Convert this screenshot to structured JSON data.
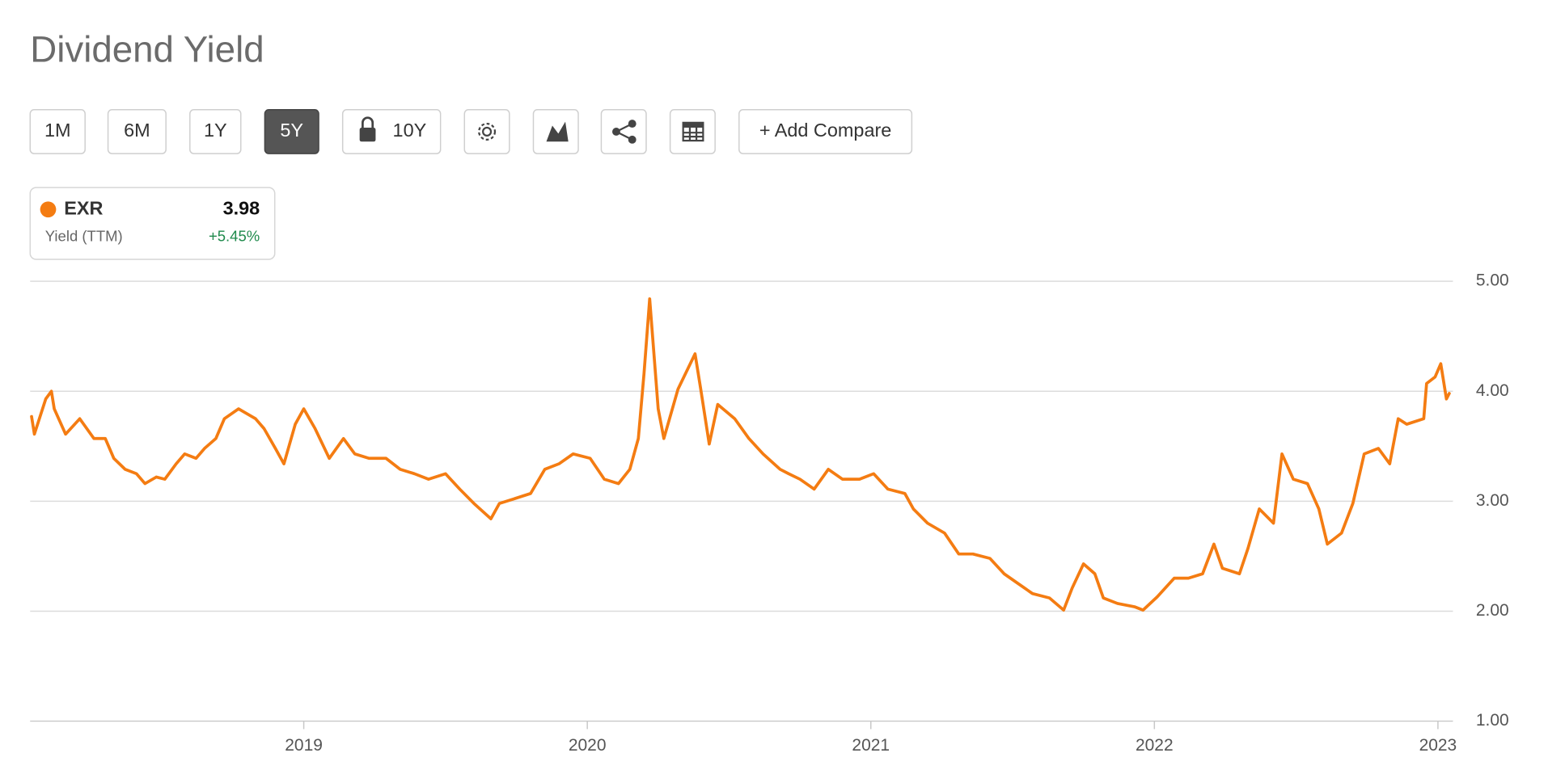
{
  "title": "Dividend Yield",
  "toolbar": {
    "ranges": [
      "1M",
      "6M",
      "1Y",
      "5Y",
      "10Y"
    ],
    "active": "5Y",
    "compare": "+ Add Compare"
  },
  "legend": {
    "value": 3.98,
    "label": "Yield (TTM)",
    "change": "+5.45%"
  },
  "chart_data": {
    "type": "line",
    "x": [
      2018.04,
      2018.05,
      2018.09,
      2018.11,
      2018.12,
      2018.16,
      2018.21,
      2018.26,
      2018.3,
      2018.33,
      2018.37,
      2018.41,
      2018.44,
      2018.48,
      2018.51,
      2018.55,
      2018.58,
      2018.62,
      2018.65,
      2018.69,
      2018.72,
      2018.77,
      2018.83,
      2018.86,
      2018.9,
      2018.93,
      2018.97,
      2019.0,
      2019.04,
      2019.09,
      2019.14,
      2019.18,
      2019.23,
      2019.29,
      2019.34,
      2019.39,
      2019.44,
      2019.5,
      2019.55,
      2019.6,
      2019.66,
      2019.69,
      2019.74,
      2019.8,
      2019.85,
      2019.9,
      2019.95,
      2020.01,
      2020.06,
      2020.11,
      2020.15,
      2020.18,
      2020.2,
      2020.22,
      2020.25,
      2020.27,
      2020.32,
      2020.38,
      2020.4,
      2020.43,
      2020.46,
      2020.52,
      2020.57,
      2020.62,
      2020.68,
      2020.71,
      2020.75,
      2020.8,
      2020.85,
      2020.9,
      2020.96,
      2021.01,
      2021.06,
      2021.12,
      2021.15,
      2021.2,
      2021.26,
      2021.31,
      2021.36,
      2021.42,
      2021.47,
      2021.52,
      2021.57,
      2021.63,
      2021.68,
      2021.71,
      2021.75,
      2021.79,
      2021.82,
      2021.87,
      2021.93,
      2021.96,
      2022.01,
      2022.07,
      2022.12,
      2022.17,
      2022.21,
      2022.24,
      2022.3,
      2022.33,
      2022.37,
      2022.42,
      2022.45,
      2022.49,
      2022.54,
      2022.58,
      2022.61,
      2022.66,
      2022.7,
      2022.74,
      2022.79,
      2022.83,
      2022.86,
      2022.89,
      2022.95,
      2022.96,
      2022.99,
      2023.01,
      2023.03,
      2023.04
    ],
    "series": [
      {
        "name": "EXR",
        "color": "#f47c12",
        "values": [
          3.77,
          3.61,
          3.93,
          4.0,
          3.84,
          3.61,
          3.75,
          3.57,
          3.57,
          3.39,
          3.29,
          3.25,
          3.16,
          3.22,
          3.2,
          3.34,
          3.43,
          3.39,
          3.48,
          3.57,
          3.75,
          3.84,
          3.75,
          3.66,
          3.48,
          3.34,
          3.7,
          3.84,
          3.66,
          3.39,
          3.57,
          3.43,
          3.39,
          3.39,
          3.29,
          3.25,
          3.2,
          3.25,
          3.11,
          2.98,
          2.84,
          2.98,
          3.02,
          3.07,
          3.29,
          3.34,
          3.43,
          3.39,
          3.2,
          3.16,
          3.29,
          3.57,
          4.16,
          4.84,
          3.84,
          3.57,
          4.02,
          4.34,
          4.02,
          3.52,
          3.88,
          3.75,
          3.57,
          3.43,
          3.29,
          3.25,
          3.2,
          3.11,
          3.29,
          3.2,
          3.2,
          3.25,
          3.11,
          3.07,
          2.93,
          2.8,
          2.71,
          2.52,
          2.52,
          2.48,
          2.34,
          2.25,
          2.16,
          2.12,
          2.01,
          2.21,
          2.43,
          2.34,
          2.12,
          2.07,
          2.04,
          2.01,
          2.13,
          2.3,
          2.3,
          2.34,
          2.61,
          2.39,
          2.34,
          2.57,
          2.93,
          2.8,
          3.43,
          3.2,
          3.16,
          2.93,
          2.61,
          2.71,
          2.98,
          3.43,
          3.48,
          3.34,
          3.75,
          3.7,
          3.75,
          4.07,
          4.13,
          4.25,
          3.93,
          3.98
        ]
      }
    ],
    "xlim": [
      2018.035,
      2023.053
    ],
    "xticks": [
      2019,
      2020,
      2021,
      2022,
      2023
    ],
    "ylim": [
      1,
      5
    ],
    "yticks": [
      {
        "value": 1,
        "label": "1.00"
      },
      {
        "value": 2,
        "label": "2.00"
      },
      {
        "value": 3,
        "label": "3.00"
      },
      {
        "value": 4,
        "label": "4.00"
      },
      {
        "value": 5,
        "label": "5.00"
      }
    ],
    "grid": true
  }
}
